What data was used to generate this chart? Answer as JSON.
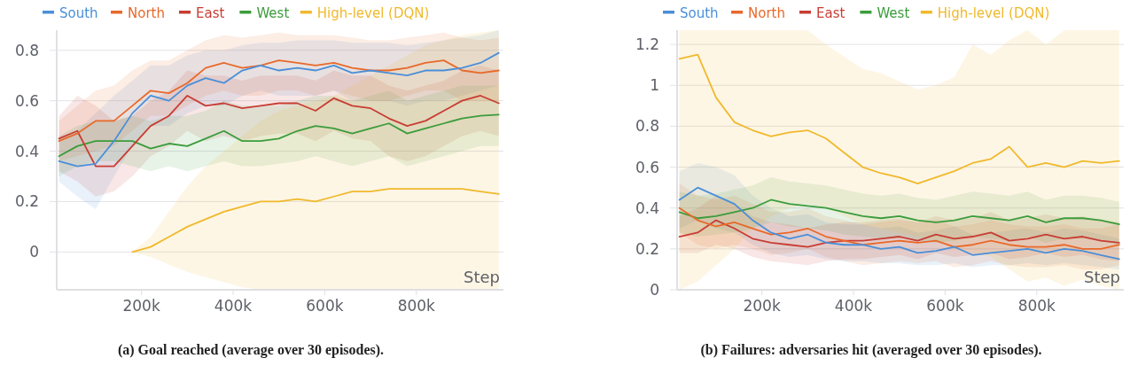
{
  "chart_data": [
    {
      "type": "line",
      "title": "(a) Goal reached (average over 30 episodes).",
      "xlabel": "Step",
      "legend": "top",
      "grid": "y",
      "x": [
        20000,
        60000,
        100000,
        140000,
        180000,
        220000,
        260000,
        300000,
        340000,
        380000,
        420000,
        460000,
        500000,
        540000,
        580000,
        620000,
        660000,
        700000,
        740000,
        780000,
        820000,
        860000,
        900000,
        940000,
        980000
      ],
      "xlim": [
        15000,
        990000
      ],
      "ylim": [
        -0.15,
        0.88
      ],
      "xticks": [
        {
          "value": 200000,
          "label": "200k"
        },
        {
          "value": 400000,
          "label": "400k"
        },
        {
          "value": 600000,
          "label": "600k"
        },
        {
          "value": 800000,
          "label": "800k"
        }
      ],
      "yticks": [
        0,
        0.2,
        0.4,
        0.6,
        0.8
      ],
      "series": [
        {
          "name": "South",
          "color": "#4a8fd8",
          "values": [
            0.36,
            0.34,
            0.35,
            0.44,
            0.55,
            0.62,
            0.6,
            0.66,
            0.69,
            0.67,
            0.72,
            0.74,
            0.72,
            0.73,
            0.72,
            0.74,
            0.71,
            0.72,
            0.71,
            0.7,
            0.72,
            0.72,
            0.73,
            0.75,
            0.79
          ],
          "lower": [
            0.28,
            0.22,
            0.17,
            0.3,
            0.42,
            0.5,
            0.5,
            0.55,
            0.58,
            0.58,
            0.62,
            0.64,
            0.62,
            0.62,
            0.62,
            0.64,
            0.6,
            0.6,
            0.6,
            0.58,
            0.6,
            0.6,
            0.62,
            0.64,
            0.66
          ],
          "upper": [
            0.45,
            0.48,
            0.55,
            0.62,
            0.68,
            0.74,
            0.74,
            0.78,
            0.8,
            0.8,
            0.82,
            0.83,
            0.83,
            0.84,
            0.84,
            0.84,
            0.83,
            0.83,
            0.83,
            0.82,
            0.83,
            0.84,
            0.85,
            0.86,
            0.88
          ]
        },
        {
          "name": "North",
          "color": "#e8692a",
          "values": [
            0.44,
            0.47,
            0.52,
            0.52,
            0.58,
            0.64,
            0.63,
            0.67,
            0.73,
            0.75,
            0.73,
            0.74,
            0.76,
            0.75,
            0.74,
            0.75,
            0.73,
            0.72,
            0.72,
            0.73,
            0.75,
            0.76,
            0.72,
            0.71,
            0.72
          ],
          "lower": [
            0.36,
            0.38,
            0.4,
            0.42,
            0.48,
            0.54,
            0.54,
            0.58,
            0.62,
            0.64,
            0.62,
            0.62,
            0.64,
            0.64,
            0.62,
            0.64,
            0.62,
            0.6,
            0.6,
            0.62,
            0.64,
            0.64,
            0.6,
            0.6,
            0.6
          ],
          "upper": [
            0.52,
            0.58,
            0.64,
            0.66,
            0.72,
            0.76,
            0.76,
            0.8,
            0.84,
            0.86,
            0.85,
            0.86,
            0.87,
            0.86,
            0.86,
            0.86,
            0.85,
            0.84,
            0.84,
            0.85,
            0.86,
            0.87,
            0.85,
            0.84,
            0.85
          ]
        },
        {
          "name": "East",
          "color": "#c83d33",
          "values": [
            0.45,
            0.48,
            0.34,
            0.34,
            0.42,
            0.5,
            0.54,
            0.62,
            0.58,
            0.59,
            0.57,
            0.58,
            0.59,
            0.59,
            0.56,
            0.61,
            0.58,
            0.57,
            0.53,
            0.5,
            0.52,
            0.56,
            0.6,
            0.62,
            0.59
          ],
          "lower": [
            0.32,
            0.28,
            0.22,
            0.24,
            0.3,
            0.38,
            0.42,
            0.48,
            0.44,
            0.46,
            0.44,
            0.46,
            0.47,
            0.47,
            0.44,
            0.48,
            0.45,
            0.44,
            0.38,
            0.36,
            0.38,
            0.42,
            0.46,
            0.48,
            0.46
          ],
          "upper": [
            0.54,
            0.62,
            0.58,
            0.52,
            0.54,
            0.6,
            0.64,
            0.72,
            0.7,
            0.7,
            0.68,
            0.7,
            0.7,
            0.7,
            0.68,
            0.72,
            0.7,
            0.7,
            0.66,
            0.64,
            0.66,
            0.68,
            0.72,
            0.74,
            0.72
          ]
        },
        {
          "name": "West",
          "color": "#3b9c3b",
          "values": [
            0.38,
            0.42,
            0.44,
            0.44,
            0.44,
            0.41,
            0.43,
            0.42,
            0.45,
            0.48,
            0.44,
            0.44,
            0.45,
            0.48,
            0.5,
            0.49,
            0.47,
            0.49,
            0.51,
            0.47,
            0.49,
            0.51,
            0.53,
            0.54,
            0.545
          ],
          "lower": [
            0.3,
            0.34,
            0.36,
            0.36,
            0.34,
            0.32,
            0.34,
            0.32,
            0.34,
            0.36,
            0.34,
            0.34,
            0.35,
            0.36,
            0.38,
            0.36,
            0.34,
            0.36,
            0.38,
            0.34,
            0.36,
            0.38,
            0.4,
            0.42,
            0.42
          ],
          "upper": [
            0.46,
            0.5,
            0.52,
            0.52,
            0.54,
            0.52,
            0.54,
            0.54,
            0.56,
            0.6,
            0.58,
            0.58,
            0.58,
            0.6,
            0.62,
            0.62,
            0.6,
            0.62,
            0.64,
            0.6,
            0.62,
            0.64,
            0.66,
            0.66,
            0.66
          ]
        },
        {
          "name": "High-level (DQN)",
          "color": "#f0b92c",
          "values": [
            null,
            null,
            null,
            null,
            0,
            0.02,
            0.06,
            0.1,
            0.13,
            0.16,
            0.18,
            0.2,
            0.2,
            0.21,
            0.2,
            0.22,
            0.24,
            0.24,
            0.25,
            0.25,
            0.25,
            0.25,
            0.25,
            0.24,
            0.23
          ],
          "lower": [
            null,
            null,
            null,
            null,
            0,
            -0.02,
            -0.05,
            -0.08,
            -0.1,
            -0.12,
            -0.14,
            -0.15,
            -0.15,
            -0.15,
            -0.15,
            -0.15,
            -0.15,
            -0.15,
            -0.15,
            -0.15,
            -0.15,
            -0.15,
            -0.15,
            -0.15,
            -0.15
          ],
          "upper": [
            null,
            null,
            null,
            null,
            0,
            0.06,
            0.16,
            0.26,
            0.34,
            0.4,
            0.46,
            0.52,
            0.56,
            0.58,
            0.6,
            0.62,
            0.66,
            0.7,
            0.74,
            0.78,
            0.82,
            0.84,
            0.86,
            0.87,
            0.88
          ]
        }
      ]
    },
    {
      "type": "line",
      "title": "(b) Failures: adversaries hit (averaged over 30 episodes).",
      "xlabel": "Step",
      "legend": "top",
      "grid": "y",
      "x": [
        20000,
        60000,
        100000,
        140000,
        180000,
        220000,
        260000,
        300000,
        340000,
        380000,
        420000,
        460000,
        500000,
        540000,
        580000,
        620000,
        660000,
        700000,
        740000,
        780000,
        820000,
        860000,
        900000,
        940000,
        980000
      ],
      "xlim": [
        15000,
        990000
      ],
      "ylim": [
        0,
        1.27
      ],
      "xticks": [
        {
          "value": 200000,
          "label": "200k"
        },
        {
          "value": 400000,
          "label": "400k"
        },
        {
          "value": 600000,
          "label": "600k"
        },
        {
          "value": 800000,
          "label": "800k"
        }
      ],
      "yticks": [
        0,
        0.2,
        0.4,
        0.6,
        0.8,
        1,
        1.2
      ],
      "series": [
        {
          "name": "South",
          "color": "#4a8fd8",
          "values": [
            0.44,
            0.5,
            0.46,
            0.42,
            0.34,
            0.28,
            0.25,
            0.27,
            0.23,
            0.22,
            0.22,
            0.2,
            0.21,
            0.18,
            0.19,
            0.21,
            0.17,
            0.18,
            0.19,
            0.2,
            0.18,
            0.2,
            0.19,
            0.17,
            0.15
          ],
          "lower": [
            0.3,
            0.34,
            0.3,
            0.28,
            0.22,
            0.18,
            0.16,
            0.17,
            0.15,
            0.14,
            0.14,
            0.13,
            0.13,
            0.12,
            0.12,
            0.13,
            0.11,
            0.12,
            0.12,
            0.13,
            0.12,
            0.13,
            0.12,
            0.11,
            0.1
          ],
          "upper": [
            0.58,
            0.62,
            0.6,
            0.56,
            0.46,
            0.4,
            0.36,
            0.37,
            0.33,
            0.32,
            0.32,
            0.3,
            0.31,
            0.28,
            0.29,
            0.31,
            0.27,
            0.28,
            0.29,
            0.3,
            0.28,
            0.3,
            0.29,
            0.27,
            0.25
          ]
        },
        {
          "name": "North",
          "color": "#e8692a",
          "values": [
            0.4,
            0.34,
            0.31,
            0.33,
            0.3,
            0.27,
            0.28,
            0.3,
            0.26,
            0.24,
            0.22,
            0.23,
            0.24,
            0.23,
            0.24,
            0.21,
            0.22,
            0.24,
            0.22,
            0.21,
            0.21,
            0.22,
            0.2,
            0.2,
            0.22
          ],
          "lower": [
            0.28,
            0.22,
            0.2,
            0.22,
            0.2,
            0.17,
            0.18,
            0.2,
            0.16,
            0.14,
            0.12,
            0.13,
            0.14,
            0.13,
            0.14,
            0.11,
            0.12,
            0.14,
            0.12,
            0.11,
            0.11,
            0.12,
            0.1,
            0.1,
            0.12
          ],
          "upper": [
            0.52,
            0.46,
            0.44,
            0.46,
            0.42,
            0.38,
            0.38,
            0.4,
            0.36,
            0.34,
            0.32,
            0.33,
            0.34,
            0.33,
            0.34,
            0.31,
            0.32,
            0.34,
            0.32,
            0.31,
            0.31,
            0.32,
            0.3,
            0.3,
            0.32
          ]
        },
        {
          "name": "East",
          "color": "#c83d33",
          "values": [
            0.26,
            0.28,
            0.34,
            0.3,
            0.25,
            0.23,
            0.22,
            0.21,
            0.23,
            0.24,
            0.24,
            0.25,
            0.26,
            0.24,
            0.27,
            0.25,
            0.26,
            0.28,
            0.24,
            0.25,
            0.27,
            0.25,
            0.26,
            0.24,
            0.23
          ],
          "lower": [
            0.18,
            0.18,
            0.22,
            0.2,
            0.16,
            0.14,
            0.13,
            0.12,
            0.14,
            0.15,
            0.15,
            0.16,
            0.17,
            0.15,
            0.18,
            0.16,
            0.17,
            0.18,
            0.15,
            0.16,
            0.18,
            0.16,
            0.17,
            0.15,
            0.14
          ],
          "upper": [
            0.36,
            0.4,
            0.46,
            0.42,
            0.36,
            0.33,
            0.32,
            0.3,
            0.32,
            0.33,
            0.33,
            0.34,
            0.35,
            0.33,
            0.36,
            0.34,
            0.35,
            0.38,
            0.34,
            0.35,
            0.37,
            0.35,
            0.36,
            0.34,
            0.33
          ]
        },
        {
          "name": "West",
          "color": "#3b9c3b",
          "values": [
            0.38,
            0.35,
            0.36,
            0.38,
            0.4,
            0.44,
            0.42,
            0.41,
            0.4,
            0.38,
            0.36,
            0.35,
            0.36,
            0.34,
            0.33,
            0.34,
            0.36,
            0.35,
            0.34,
            0.36,
            0.33,
            0.35,
            0.35,
            0.34,
            0.32
          ],
          "lower": [
            0.28,
            0.26,
            0.27,
            0.28,
            0.3,
            0.33,
            0.31,
            0.3,
            0.29,
            0.27,
            0.26,
            0.25,
            0.26,
            0.24,
            0.23,
            0.24,
            0.26,
            0.25,
            0.24,
            0.26,
            0.23,
            0.25,
            0.25,
            0.24,
            0.22
          ],
          "upper": [
            0.48,
            0.46,
            0.47,
            0.49,
            0.51,
            0.55,
            0.53,
            0.52,
            0.51,
            0.49,
            0.47,
            0.46,
            0.47,
            0.45,
            0.44,
            0.46,
            0.48,
            0.47,
            0.46,
            0.48,
            0.44,
            0.46,
            0.46,
            0.45,
            0.43
          ]
        },
        {
          "name": "High-level (DQN)",
          "color": "#f0b92c",
          "values": [
            1.13,
            1.15,
            0.94,
            0.82,
            0.78,
            0.75,
            0.77,
            0.78,
            0.74,
            0.67,
            0.6,
            0.57,
            0.55,
            0.52,
            0.55,
            0.58,
            0.62,
            0.64,
            0.7,
            0.6,
            0.62,
            0.6,
            0.63,
            0.62,
            0.63
          ],
          "lower": [
            0,
            0.04,
            0.12,
            0.2,
            0.3,
            0.36,
            0.4,
            0.42,
            0.4,
            0.36,
            0.32,
            0.3,
            0.28,
            0.26,
            0.24,
            0.2,
            0.18,
            0.16,
            0.1,
            0.04,
            0.06,
            0.02,
            0.05,
            0.02,
            0
          ],
          "upper": [
            1.27,
            1.27,
            1.27,
            1.27,
            1.27,
            1.27,
            1.27,
            1.27,
            1.2,
            1.14,
            1.08,
            1.06,
            1.02,
            0.98,
            1.0,
            1.04,
            1.2,
            1.15,
            1.22,
            1.27,
            1.2,
            1.27,
            1.27,
            1.27,
            1.27
          ]
        }
      ]
    }
  ]
}
